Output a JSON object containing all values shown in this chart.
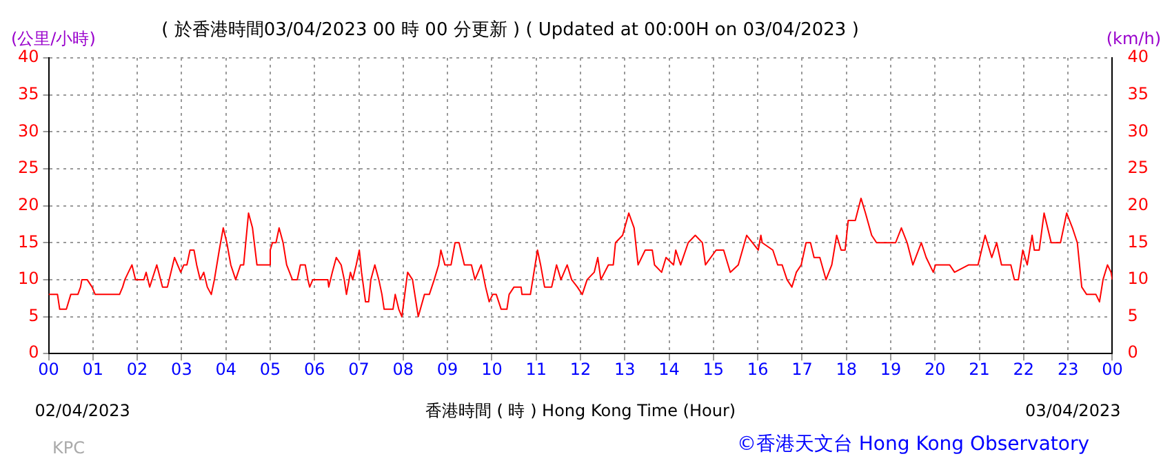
{
  "chart_data": {
    "type": "line",
    "title": "( 於香港時間03/04/2023 00 時 00 分更新 ) ( Updated at 00:00H on 03/04/2023 )",
    "ylabel": "(公里/小時)",
    "y2label": "(km/h)",
    "xlabel": "香港時間 ( 時 ) Hong Kong Time (Hour)",
    "annotations": [
      "02/04/2023",
      "03/04/2023",
      "KPC",
      "©香港天文台 Hong Kong Observatory"
    ],
    "series": [
      {
        "color": "#ff0000",
        "x": [
          0,
          0.2,
          0.25,
          0.4,
          0.5,
          0.66,
          0.72,
          0.75,
          0.87,
          0.98,
          1.05,
          1.6,
          1.67,
          1.72,
          1.88,
          1.96,
          2.15,
          2.2,
          2.28,
          2.44,
          2.57,
          2.68,
          2.84,
          2.98,
          3.05,
          3.12,
          3.19,
          3.28,
          3.34,
          3.42,
          3.5,
          3.58,
          3.67,
          3.74,
          3.85,
          3.94,
          4.02,
          4.11,
          4.22,
          4.33,
          4.4,
          4.51,
          4.6,
          4.7,
          4.97,
          5.0,
          5.05,
          5.13,
          5.2,
          5.29,
          5.37,
          5.5,
          5.61,
          5.68,
          5.79,
          5.85,
          5.89,
          5.96,
          6.3,
          6.32,
          6.4,
          6.49,
          6.6,
          6.67,
          6.72,
          6.81,
          6.86,
          6.94,
          7.01,
          7.06,
          7.15,
          7.22,
          7.27,
          7.36,
          7.45,
          7.52,
          7.57,
          7.77,
          7.82,
          7.9,
          7.97,
          8.1,
          8.21,
          8.34,
          8.48,
          8.59,
          8.7,
          8.8,
          8.85,
          8.94,
          9.08,
          9.17,
          9.26,
          9.38,
          9.54,
          9.62,
          9.76,
          9.86,
          9.94,
          10.02,
          10.1,
          10.21,
          10.34,
          10.39,
          10.5,
          10.66,
          10.68,
          10.87,
          11.03,
          11.1,
          11.19,
          11.35,
          11.46,
          11.56,
          11.7,
          11.8,
          11.93,
          12.04,
          12.15,
          12.31,
          12.39,
          12.46,
          12.63,
          12.74,
          12.79,
          12.95,
          13.09,
          13.21,
          13.3,
          13.46,
          13.62,
          13.67,
          13.83,
          13.93,
          14.1,
          14.15,
          14.26,
          14.43,
          14.59,
          14.75,
          14.82,
          15.06,
          15.23,
          15.38,
          15.56,
          15.75,
          16.01,
          16.07,
          16.1,
          16.34,
          16.45,
          16.55,
          16.66,
          16.77,
          16.87,
          16.98,
          17.09,
          17.19,
          17.27,
          17.4,
          17.54,
          17.67,
          17.78,
          17.88,
          17.97,
          18.04,
          18.2,
          18.33,
          18.43,
          18.57,
          18.68,
          19.0,
          19.11,
          19.24,
          19.37,
          19.5,
          19.69,
          19.8,
          19.96,
          20.01,
          20.33,
          20.44,
          20.76,
          20.97,
          21.13,
          21.28,
          21.39,
          21.5,
          21.71,
          21.79,
          21.88,
          21.98,
          22.08,
          22.19,
          22.24,
          22.35,
          22.46,
          22.62,
          22.83,
          22.97,
          23.1,
          23.21,
          23.31,
          23.42,
          23.63,
          23.71,
          23.79,
          23.89,
          23.97,
          24
        ],
        "values": [
          8,
          8,
          6,
          6,
          8,
          8,
          9,
          10,
          10,
          9,
          8,
          8,
          9,
          10,
          12,
          10,
          10,
          11,
          9,
          12,
          9,
          9,
          13,
          11,
          12,
          12,
          14,
          14,
          12,
          10,
          11,
          9,
          8,
          10,
          14,
          17,
          15,
          12,
          10,
          12,
          12,
          19,
          17,
          12,
          12,
          14,
          15,
          15,
          17,
          15,
          12,
          10,
          10,
          12,
          12,
          10,
          9,
          10,
          10,
          9,
          11,
          13,
          12,
          10,
          8,
          11,
          10,
          12,
          14,
          11,
          7,
          7,
          10,
          12,
          10,
          8,
          6,
          6,
          8,
          6,
          5,
          11,
          10,
          5,
          8,
          8,
          10,
          12,
          14,
          12,
          12,
          15,
          15,
          12,
          12,
          10,
          12,
          9,
          7,
          8,
          8,
          6,
          6,
          8,
          9,
          9,
          8,
          8,
          14,
          12,
          9,
          9,
          12,
          10,
          12,
          10,
          9,
          8,
          10,
          11,
          13,
          10,
          12,
          12,
          15,
          16,
          19,
          17,
          12,
          14,
          14,
          12,
          11,
          13,
          12,
          14,
          12,
          15,
          16,
          15,
          12,
          14,
          14,
          11,
          12,
          16,
          14,
          16,
          15,
          14,
          12,
          12,
          10,
          9,
          11,
          12,
          15,
          15,
          13,
          13,
          10,
          12,
          16,
          14,
          14,
          18,
          18,
          21,
          19,
          16,
          15,
          15,
          15,
          17,
          15,
          12,
          15,
          13,
          11,
          12,
          12,
          11,
          12,
          12,
          16,
          13,
          15,
          12,
          12,
          10,
          10,
          14,
          12,
          16,
          14,
          14,
          19,
          15,
          15,
          19,
          17,
          15,
          9,
          8,
          8,
          7,
          10,
          12,
          11,
          10
        ]
      }
    ],
    "xlim": [
      0,
      24
    ],
    "xticks": [
      {
        "value": 0,
        "label": "00"
      },
      {
        "value": 1,
        "label": "01"
      },
      {
        "value": 2,
        "label": "02"
      },
      {
        "value": 3,
        "label": "03"
      },
      {
        "value": 4,
        "label": "04"
      },
      {
        "value": 5,
        "label": "05"
      },
      {
        "value": 6,
        "label": "06"
      },
      {
        "value": 7,
        "label": "07"
      },
      {
        "value": 8,
        "label": "08"
      },
      {
        "value": 9,
        "label": "09"
      },
      {
        "value": 10,
        "label": "10"
      },
      {
        "value": 11,
        "label": "11"
      },
      {
        "value": 12,
        "label": "12"
      },
      {
        "value": 13,
        "label": "13"
      },
      {
        "value": 14,
        "label": "14"
      },
      {
        "value": 15,
        "label": "15"
      },
      {
        "value": 16,
        "label": "16"
      },
      {
        "value": 17,
        "label": "17"
      },
      {
        "value": 18,
        "label": "18"
      },
      {
        "value": 19,
        "label": "19"
      },
      {
        "value": 20,
        "label": "20"
      },
      {
        "value": 21,
        "label": "21"
      },
      {
        "value": 22,
        "label": "22"
      },
      {
        "value": 23,
        "label": "23"
      },
      {
        "value": 24,
        "label": "00"
      }
    ],
    "ylim": [
      0,
      40
    ],
    "yticks": [
      0,
      5,
      10,
      15,
      20,
      25,
      30,
      35,
      40
    ],
    "y2lim": [
      0,
      40
    ],
    "y2ticks": [
      0,
      5,
      10,
      15,
      20,
      25,
      30,
      35,
      40
    ],
    "grid": true,
    "legend": false,
    "marker": "none",
    "line_style": "solid"
  }
}
